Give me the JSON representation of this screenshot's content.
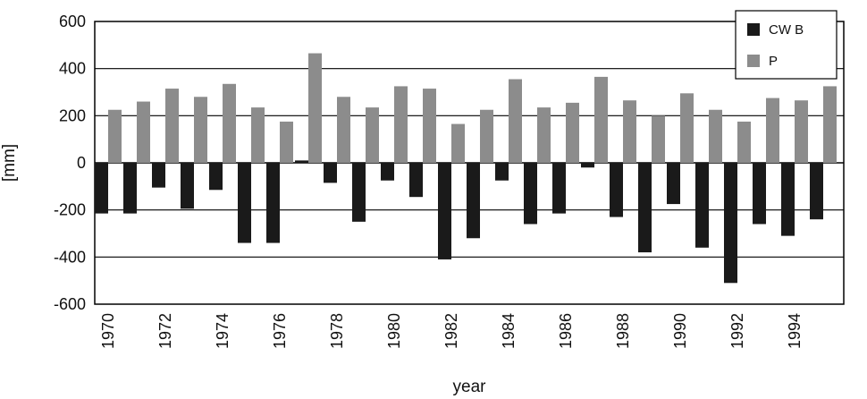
{
  "chart_data": {
    "type": "bar",
    "categories": [
      "1970",
      "1971",
      "1972",
      "1973",
      "1974",
      "1975",
      "1976",
      "1977",
      "1978",
      "1979",
      "1980",
      "1981",
      "1982",
      "1983",
      "1984",
      "1985",
      "1986",
      "1987",
      "1988",
      "1989",
      "1990",
      "1991",
      "1992",
      "1993",
      "1994",
      "1995"
    ],
    "x_tick_labels": [
      "1970",
      "1972",
      "1974",
      "1976",
      "1978",
      "1980",
      "1982",
      "1984",
      "1986",
      "1988",
      "1990",
      "1992",
      "1994"
    ],
    "series": [
      {
        "name": "CW B",
        "color": "#1a1a1a",
        "values": [
          -215,
          -215,
          -105,
          -195,
          -115,
          -340,
          -340,
          10,
          -85,
          -250,
          -75,
          -145,
          -410,
          -320,
          -75,
          -260,
          -215,
          -20,
          -230,
          -380,
          -175,
          -360,
          -510,
          -260,
          -310,
          -240
        ]
      },
      {
        "name": "P",
        "color": "#8c8c8c",
        "values": [
          225,
          260,
          315,
          280,
          335,
          235,
          175,
          465,
          280,
          235,
          325,
          315,
          165,
          225,
          355,
          235,
          255,
          365,
          265,
          200,
          295,
          225,
          175,
          275,
          265,
          325
        ]
      }
    ],
    "ylim": [
      -600,
      600
    ],
    "yticks": [
      -600,
      -400,
      -200,
      0,
      200,
      400,
      600
    ],
    "xlabel": "year",
    "ylabel": "[mm]",
    "grid": "horizontal",
    "legend_position": "top-right"
  }
}
